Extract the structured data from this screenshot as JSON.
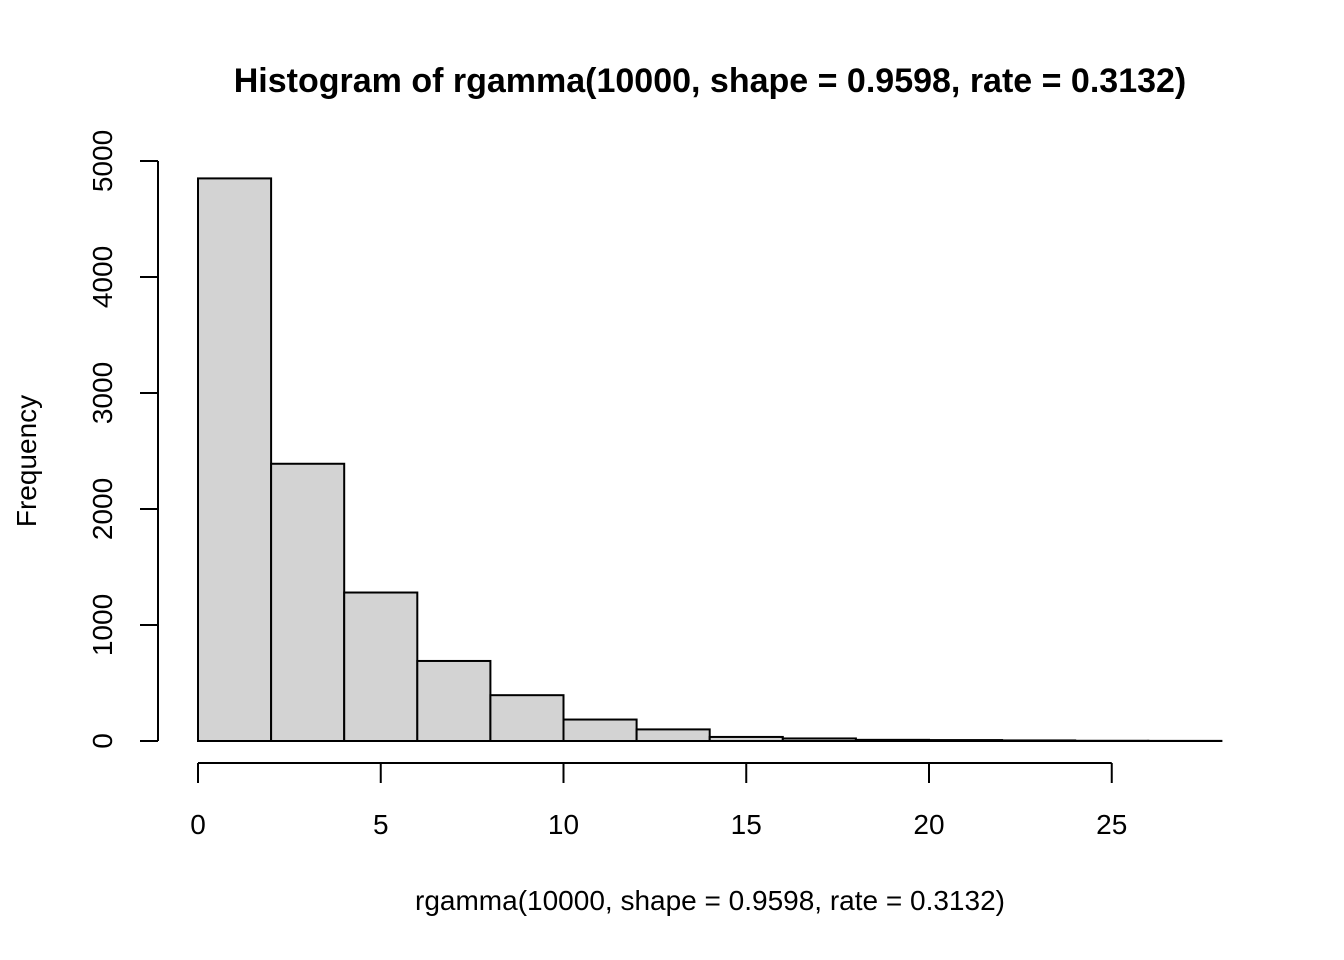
{
  "chart_data": {
    "type": "bar",
    "title": "Histogram of rgamma(10000, shape = 0.9598, rate = 0.3132)",
    "xlabel": "rgamma(10000, shape = 0.9598, rate = 0.3132)",
    "ylabel": "Frequency",
    "bin_edges": [
      0,
      2,
      4,
      6,
      8,
      10,
      12,
      14,
      16,
      18,
      20,
      22,
      24,
      26,
      28
    ],
    "values": [
      4850,
      2390,
      1280,
      690,
      395,
      185,
      100,
      35,
      22,
      10,
      8,
      5,
      2,
      1
    ],
    "x_ticks": [
      0,
      5,
      10,
      15,
      20,
      25
    ],
    "x_tick_labels": [
      "0",
      "5",
      "10",
      "15",
      "20",
      "25"
    ],
    "y_ticks": [
      0,
      1000,
      2000,
      3000,
      4000,
      5000
    ],
    "y_tick_labels": [
      "0",
      "1000",
      "2000",
      "3000",
      "4000",
      "5000"
    ],
    "xlim": [
      0,
      28
    ],
    "ylim": [
      0,
      5000
    ],
    "bar_fill": "#d3d3d3",
    "grid": false
  }
}
